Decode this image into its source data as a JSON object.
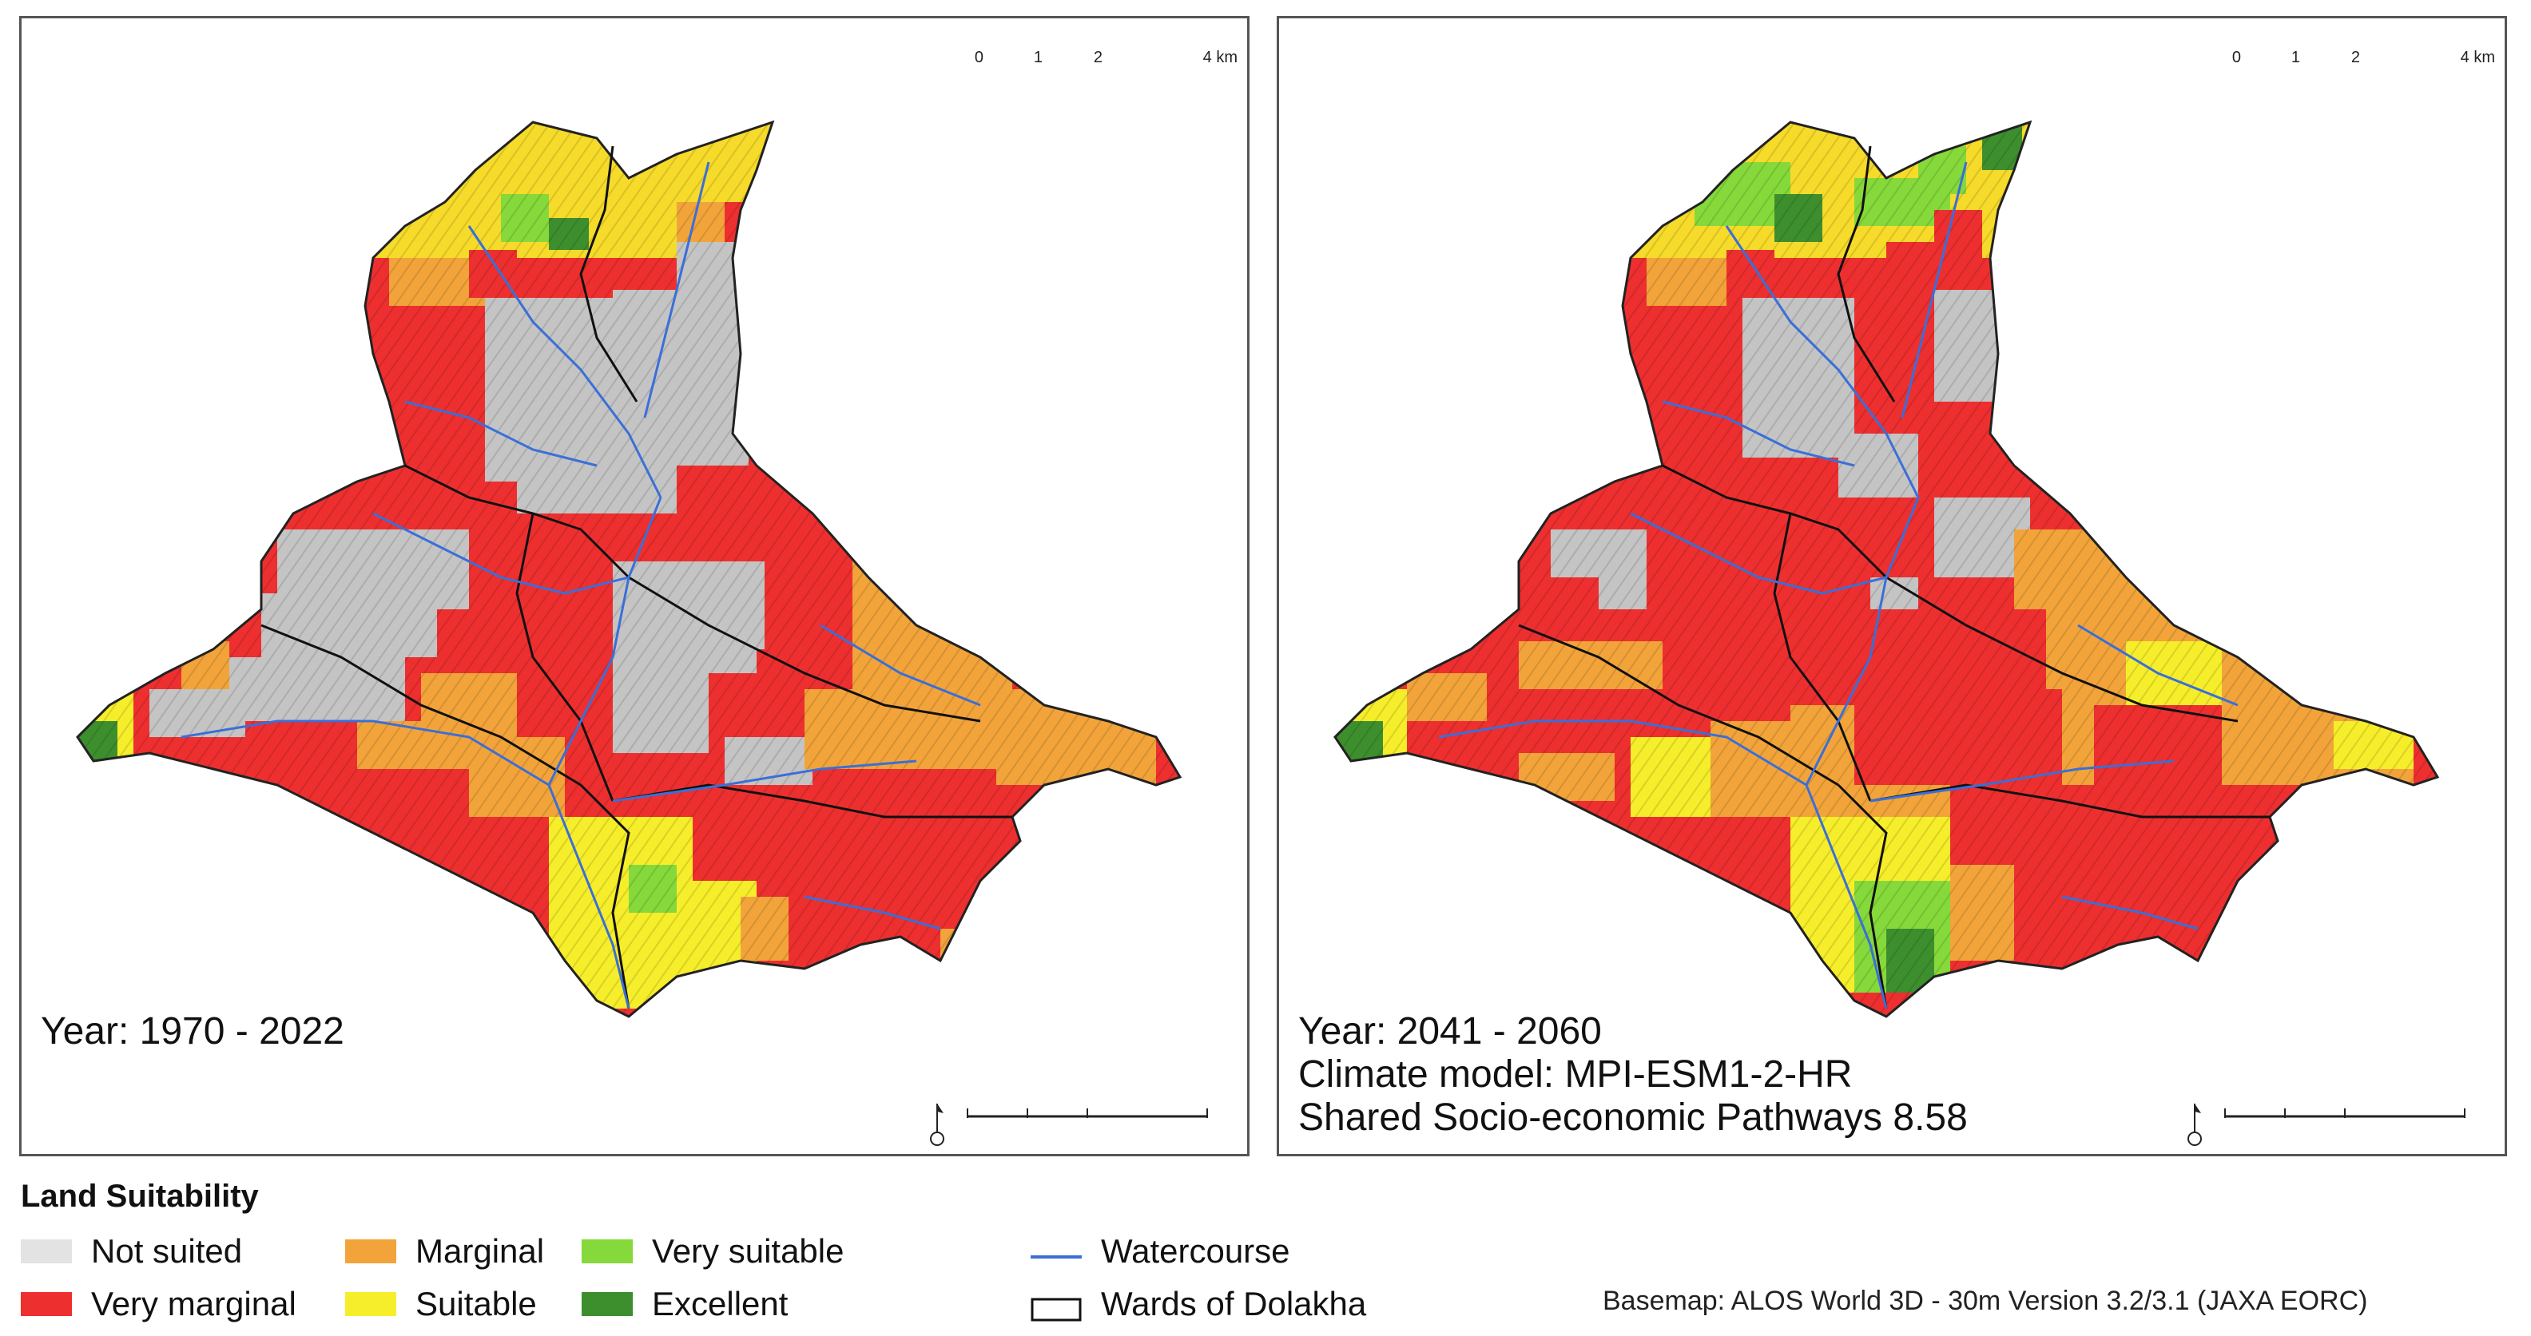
{
  "maps": [
    {
      "period_text": "Year: 1970 - 2022",
      "extra_lines": []
    },
    {
      "period_text": "Year: 2041 - 2060",
      "extra_lines": [
        "Climate model: MPI-ESM1-2-HR",
        "Shared Socio-economic Pathways 8.58"
      ]
    }
  ],
  "scalebar": {
    "ticks": [
      "0",
      "1",
      "2",
      "4 km"
    ]
  },
  "legend": {
    "title": "Land Suitability",
    "classes": [
      {
        "label": "Not suited",
        "color": "#e3e3e3"
      },
      {
        "label": "Marginal",
        "color": "#f2a43a"
      },
      {
        "label": "Very suitable",
        "color": "#86d93a"
      },
      {
        "label": "Very marginal",
        "color": "#ee2f2f"
      },
      {
        "label": "Suitable",
        "color": "#f6ee2a"
      },
      {
        "label": "Excellent",
        "color": "#3d8f2e"
      }
    ],
    "watercourse": {
      "label": "Watercourse",
      "color": "#3a6fd8"
    },
    "wards": {
      "label": "Wards of Dolakha",
      "color": "#111111"
    }
  },
  "credit": "Basemap: ALOS World 3D - 30m Version 3.2/3.1 (JAXA EORC)"
}
